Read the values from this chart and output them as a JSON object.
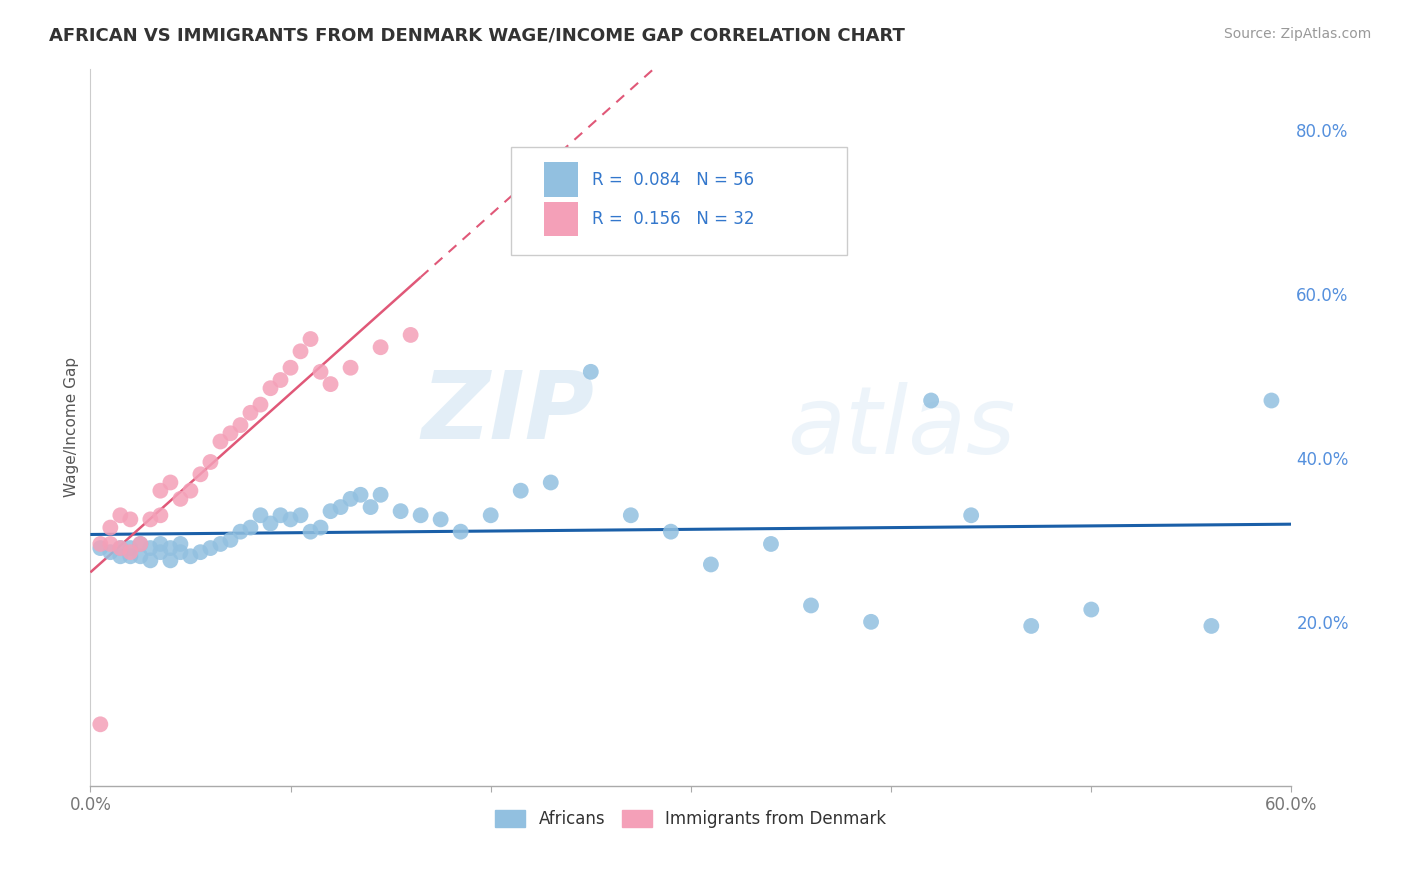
{
  "title": "AFRICAN VS IMMIGRANTS FROM DENMARK WAGE/INCOME GAP CORRELATION CHART",
  "source": "Source: ZipAtlas.com",
  "ylabel": "Wage/Income Gap",
  "xlim": [
    0.0,
    0.6
  ],
  "ylim": [
    0.0,
    0.875
  ],
  "watermark": "ZIPatlas",
  "africans_color": "#92c0e0",
  "denmark_color": "#f4a0b8",
  "africans_line_color": "#1a5fa8",
  "denmark_line_color": "#e05878",
  "africans_x": [
    0.005,
    0.01,
    0.015,
    0.015,
    0.02,
    0.02,
    0.025,
    0.025,
    0.03,
    0.03,
    0.035,
    0.035,
    0.04,
    0.04,
    0.045,
    0.045,
    0.05,
    0.055,
    0.06,
    0.065,
    0.07,
    0.075,
    0.08,
    0.085,
    0.09,
    0.095,
    0.1,
    0.105,
    0.11,
    0.115,
    0.12,
    0.125,
    0.13,
    0.135,
    0.14,
    0.145,
    0.155,
    0.165,
    0.175,
    0.185,
    0.2,
    0.215,
    0.23,
    0.25,
    0.27,
    0.29,
    0.31,
    0.34,
    0.36,
    0.39,
    0.42,
    0.44,
    0.47,
    0.5,
    0.56,
    0.59
  ],
  "africans_y": [
    0.29,
    0.285,
    0.28,
    0.29,
    0.28,
    0.29,
    0.28,
    0.295,
    0.275,
    0.29,
    0.285,
    0.295,
    0.275,
    0.29,
    0.285,
    0.295,
    0.28,
    0.285,
    0.29,
    0.295,
    0.3,
    0.31,
    0.315,
    0.33,
    0.32,
    0.33,
    0.325,
    0.33,
    0.31,
    0.315,
    0.335,
    0.34,
    0.35,
    0.355,
    0.34,
    0.355,
    0.335,
    0.33,
    0.325,
    0.31,
    0.33,
    0.36,
    0.37,
    0.505,
    0.33,
    0.31,
    0.27,
    0.295,
    0.22,
    0.2,
    0.47,
    0.33,
    0.195,
    0.215,
    0.195,
    0.47
  ],
  "denmark_x": [
    0.005,
    0.01,
    0.01,
    0.015,
    0.015,
    0.02,
    0.02,
    0.025,
    0.03,
    0.035,
    0.035,
    0.04,
    0.045,
    0.05,
    0.055,
    0.06,
    0.065,
    0.07,
    0.075,
    0.08,
    0.085,
    0.09,
    0.095,
    0.1,
    0.105,
    0.11,
    0.115,
    0.12,
    0.13,
    0.145,
    0.16,
    0.005
  ],
  "denmark_y": [
    0.295,
    0.295,
    0.315,
    0.29,
    0.33,
    0.285,
    0.325,
    0.295,
    0.325,
    0.33,
    0.36,
    0.37,
    0.35,
    0.36,
    0.38,
    0.395,
    0.42,
    0.43,
    0.44,
    0.455,
    0.465,
    0.485,
    0.495,
    0.51,
    0.53,
    0.545,
    0.505,
    0.49,
    0.51,
    0.535,
    0.55,
    0.075
  ],
  "africans_R": 0.084,
  "africans_N": 56,
  "denmark_R": 0.156,
  "denmark_N": 32,
  "background_color": "#ffffff",
  "grid_color": "#cccccc"
}
